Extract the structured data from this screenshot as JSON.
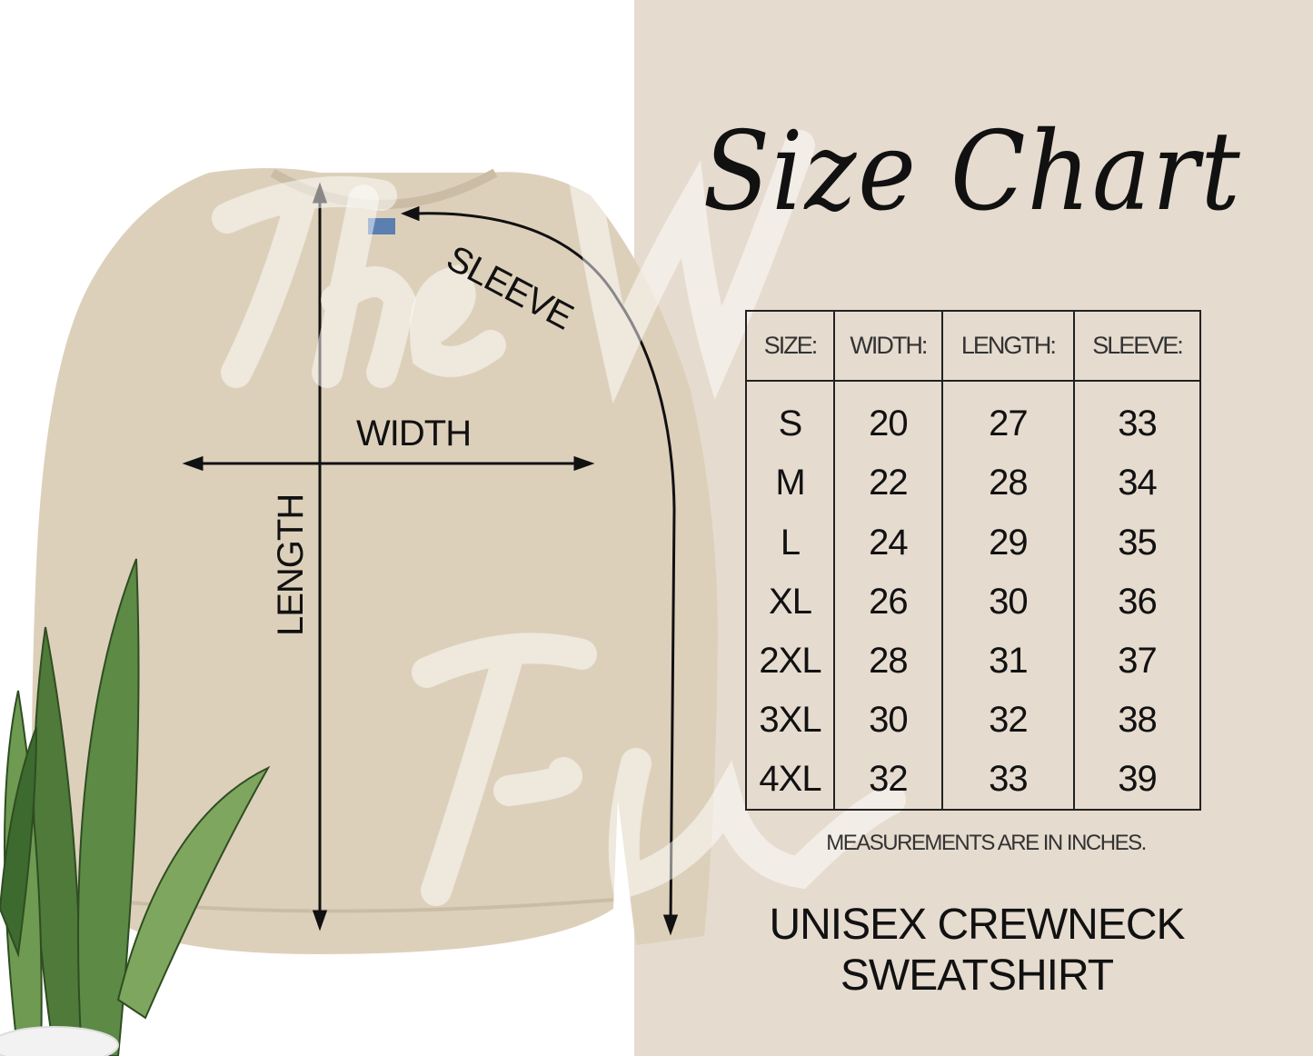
{
  "title": "Size Chart",
  "watermark": "The White Flower",
  "diagram_labels": {
    "sleeve": "SLEEVE",
    "width": "WIDTH",
    "length": "LENGTH"
  },
  "table": {
    "headers": [
      "SIZE:",
      "WIDTH:",
      "LENGTH:",
      "SLEEVE:"
    ],
    "rows": [
      [
        "S",
        "20",
        "27",
        "33"
      ],
      [
        "M",
        "22",
        "28",
        "34"
      ],
      [
        "L",
        "24",
        "29",
        "35"
      ],
      [
        "XL",
        "26",
        "30",
        "36"
      ],
      [
        "2XL",
        "28",
        "31",
        "37"
      ],
      [
        "3XL",
        "30",
        "32",
        "38"
      ],
      [
        "4XL",
        "32",
        "33",
        "39"
      ]
    ]
  },
  "note": "MEASUREMENTS ARE IN INCHES.",
  "product": {
    "line1": "UNISEX CREWNECK",
    "line2": "SWEATSHIRT"
  },
  "colors": {
    "panel": "#e6dbcf",
    "garment": "#ddd0bb",
    "ink": "#111111",
    "plant": "#4f7a3a"
  }
}
